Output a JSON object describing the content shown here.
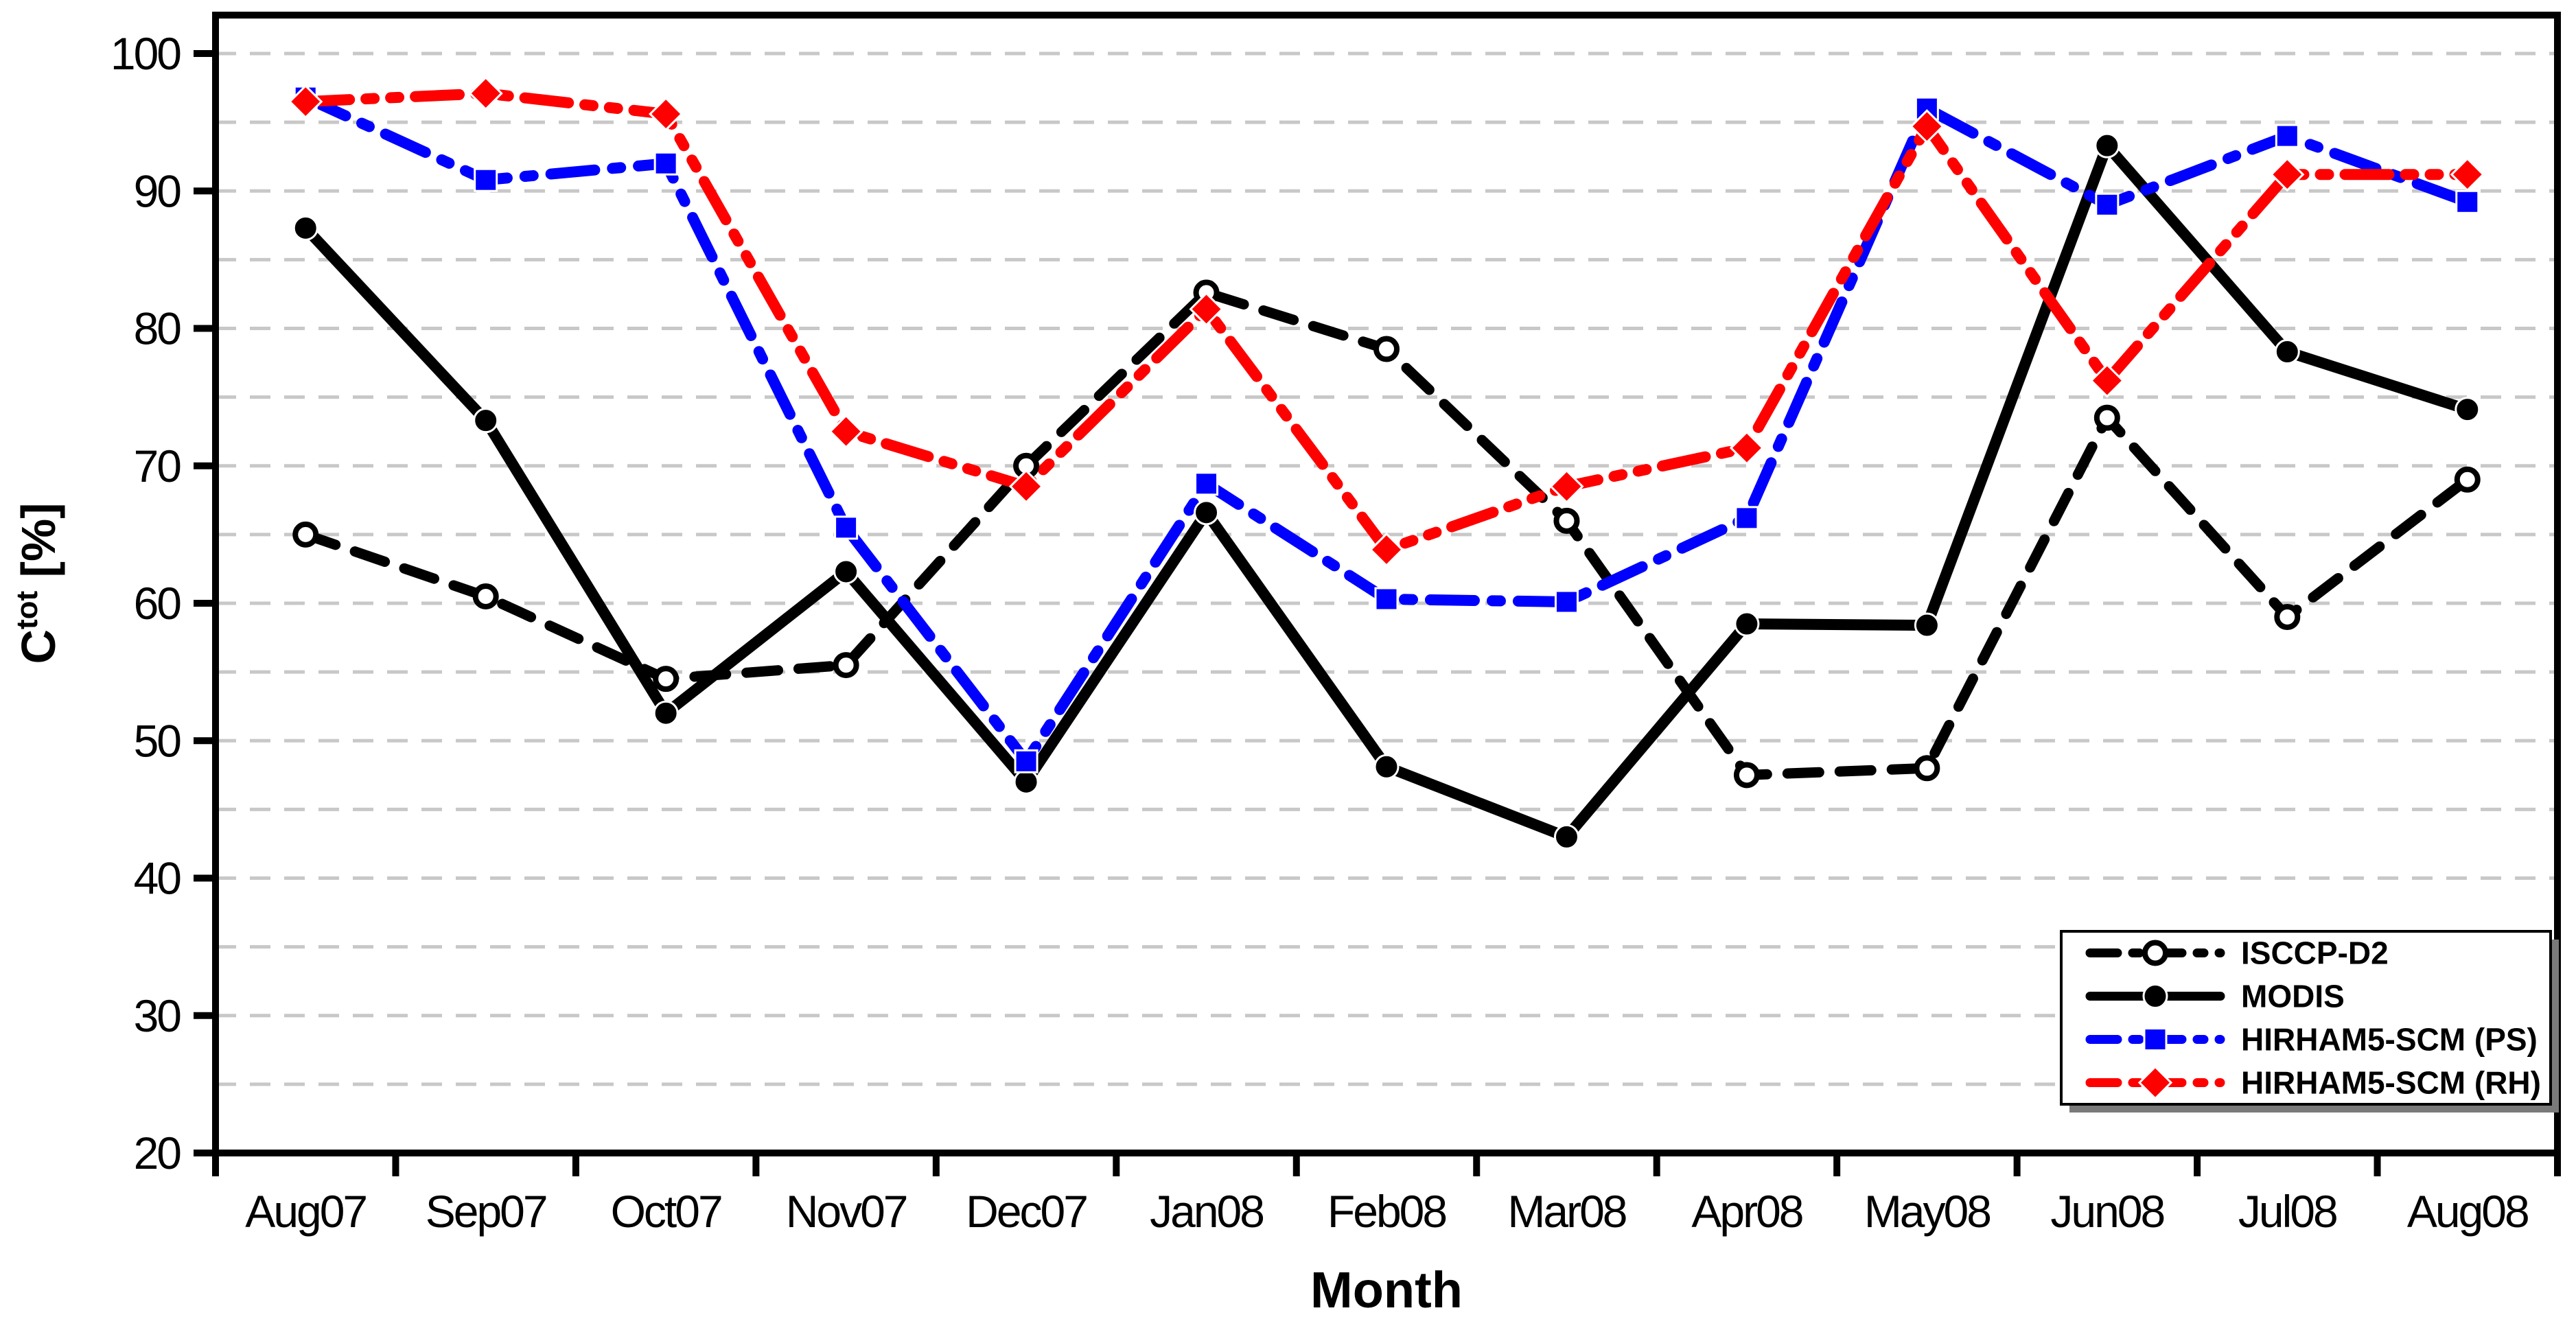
{
  "chart_data": {
    "type": "line",
    "title": "",
    "xlabel": "Month",
    "ylabel": "Ctot [%]",
    "ylabel_parts": {
      "base": "C",
      "superscript": "tot",
      "unit": " [%]"
    },
    "ylim": [
      20,
      100
    ],
    "yticks": [
      20,
      30,
      40,
      50,
      60,
      70,
      80,
      90,
      100
    ],
    "grid": {
      "show": true,
      "interval": 5,
      "color": "#c8c8c8",
      "style": "dashed"
    },
    "frame_color": "#000000",
    "background": "#ffffff",
    "categories": [
      "Aug07",
      "Sep07",
      "Oct07",
      "Nov07",
      "Dec07",
      "Jan08",
      "Feb08",
      "Mar08",
      "Apr08",
      "May08",
      "Jun08",
      "Jul08",
      "Aug08"
    ],
    "series": [
      {
        "name": "ISCCP-D2",
        "color": "#000000",
        "line_style": "dashed",
        "marker": "circle-open",
        "values": [
          65.0,
          60.5,
          54.5,
          55.5,
          70.0,
          82.6,
          78.5,
          66.0,
          47.5,
          48.0,
          73.5,
          59.0,
          69.0
        ]
      },
      {
        "name": "MODIS",
        "color": "#000000",
        "line_style": "solid",
        "marker": "circle-filled",
        "values": [
          87.3,
          73.3,
          52.0,
          62.3,
          47.0,
          66.6,
          48.1,
          43.0,
          58.5,
          58.4,
          93.3,
          78.3,
          74.1
        ]
      },
      {
        "name": "HIRHAM5-SCM (PS)",
        "color": "#0000ff",
        "line_style": "dashdot",
        "marker": "square",
        "values": [
          96.8,
          90.8,
          92.0,
          65.5,
          48.5,
          68.7,
          60.3,
          60.1,
          66.2,
          96.0,
          89.0,
          94.0,
          89.2
        ]
      },
      {
        "name": "HIRHAM5-SCM (RH)",
        "color": "#ff0000",
        "line_style": "dashdotdot",
        "marker": "diamond",
        "values": [
          96.5,
          97.1,
          95.6,
          72.5,
          68.5,
          81.4,
          63.9,
          68.5,
          71.3,
          94.7,
          76.2,
          91.2,
          91.2
        ]
      }
    ],
    "legend": {
      "position": "bottom-right",
      "entries": [
        "ISCCP-D2",
        "MODIS",
        "HIRHAM5-SCM (PS)",
        "HIRHAM5-SCM (RH)"
      ]
    }
  }
}
